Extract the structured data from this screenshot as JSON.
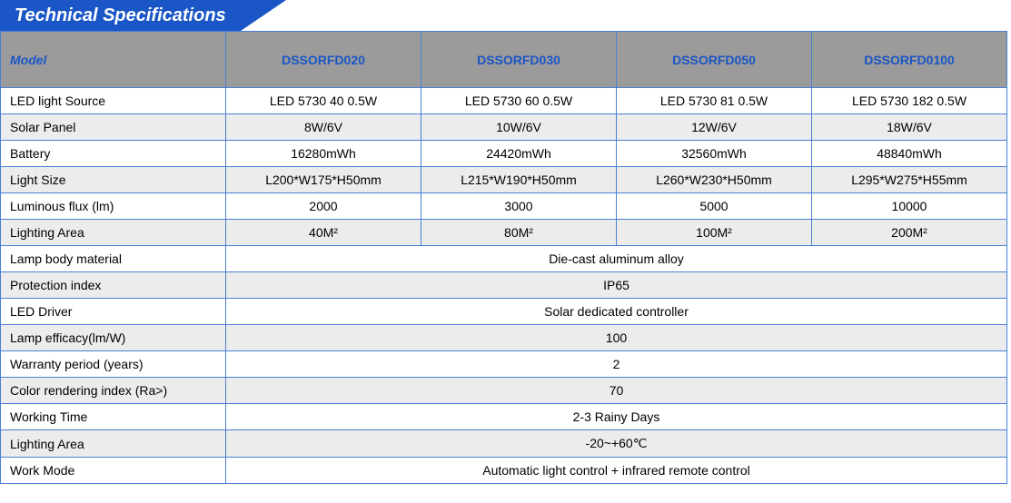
{
  "title": "Technical Specifications",
  "colors": {
    "primary": "#1a56c5",
    "header_bg": "#9b9b9b",
    "border": "#4a7fd6",
    "shade": "#ececec"
  },
  "headers": {
    "model_label": "Model",
    "models": [
      "DSSORFD020",
      "DSSORFD030",
      "DSSORFD050",
      "DSSORFD0100"
    ]
  },
  "spec_rows": [
    {
      "label": "LED light Source",
      "values": [
        "LED 5730 40 0.5W",
        "LED 5730 60 0.5W",
        "LED 5730 81 0.5W",
        "LED 5730 182 0.5W"
      ],
      "shade": false
    },
    {
      "label": "Solar Panel",
      "values": [
        "8W/6V",
        "10W/6V",
        "12W/6V",
        "18W/6V"
      ],
      "shade": true
    },
    {
      "label": "Battery",
      "values": [
        "16280mWh",
        "24420mWh",
        "32560mWh",
        "48840mWh"
      ],
      "shade": false
    },
    {
      "label": "Light Size",
      "values": [
        "L200*W175*H50mm",
        "L215*W190*H50mm",
        "L260*W230*H50mm",
        "L295*W275*H55mm"
      ],
      "shade": true
    },
    {
      "label": "Luminous  flux (lm)",
      "values": [
        "2000",
        "3000",
        "5000",
        "10000"
      ],
      "shade": false
    },
    {
      "label": "Lighting Area",
      "values": [
        "40M²",
        "80M²",
        "100M²",
        "200M²"
      ],
      "shade": true
    }
  ],
  "merged_rows": [
    {
      "label": "Lamp body  material",
      "value": "Die-cast aluminum alloy",
      "shade": false
    },
    {
      "label": "Protection  index",
      "value": "IP65",
      "shade": true
    },
    {
      "label": "LED Driver",
      "value": "Solar dedicated controller",
      "shade": false
    },
    {
      "label": "Lamp efficacy(lm/W)",
      "value": "100",
      "shade": true
    },
    {
      "label": "Warranty period (years)",
      "value": "2",
      "shade": false
    },
    {
      "label": "Color rendering  index (Ra>)",
      "value": "70",
      "shade": true
    },
    {
      "label": "Working Time",
      "value": "2-3 Rainy Days",
      "shade": false
    },
    {
      "label": "Lighting Area",
      "value": "-20~+60℃",
      "shade": true
    },
    {
      "label": "Work Mode",
      "value": "Automatic light control + infrared remote control",
      "shade": false
    }
  ]
}
